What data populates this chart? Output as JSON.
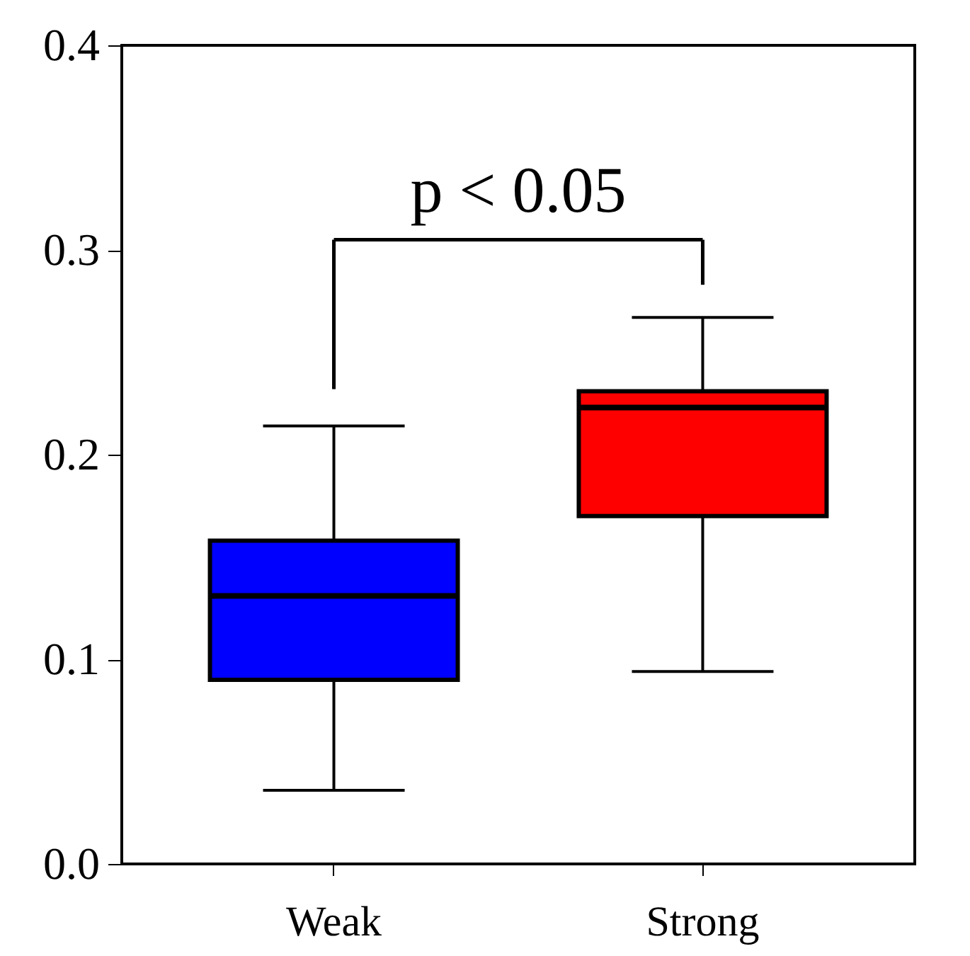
{
  "chart_data": {
    "type": "box",
    "categories": [
      "Weak",
      "Strong"
    ],
    "series": [
      {
        "color": "#0000ff",
        "boxes": [
          {
            "low": 0.036,
            "q1": 0.09,
            "median": 0.131,
            "q3": 0.158,
            "high": 0.214
          },
          null
        ]
      },
      {
        "color": "#ff0000",
        "boxes": [
          null,
          {
            "low": 0.094,
            "q1": 0.17,
            "median": 0.223,
            "q3": 0.231,
            "high": 0.267
          }
        ]
      }
    ],
    "ylim": [
      0,
      0.4
    ],
    "yticks": [
      {
        "value": 0,
        "label": "0.0"
      },
      0.1,
      0.2,
      0.3,
      0.4
    ],
    "annotations": [
      "p < 0.05"
    ],
    "grid": false,
    "legend": false
  }
}
